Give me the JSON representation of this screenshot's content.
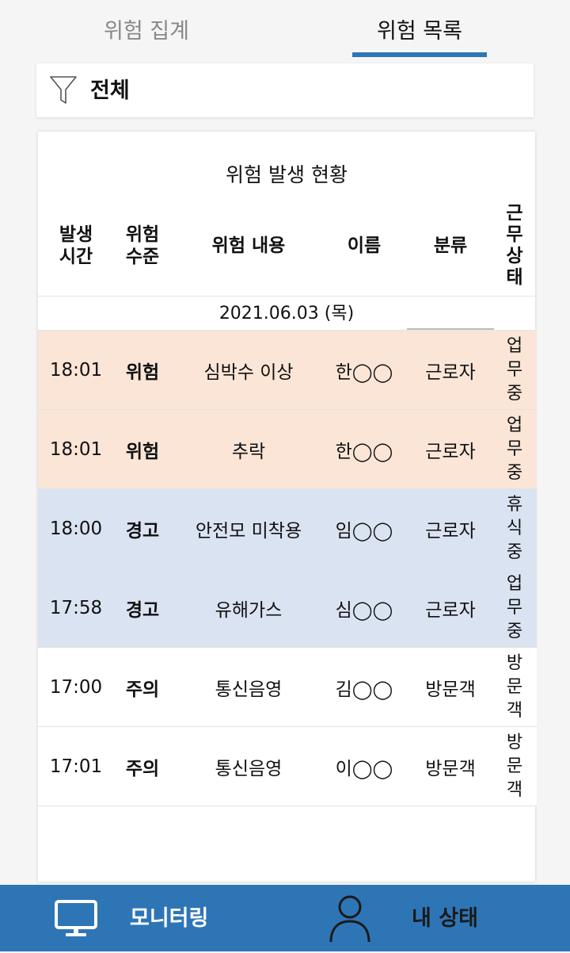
{
  "tabs": [
    {
      "label": "위험 집계",
      "active": false
    },
    {
      "label": "위험 목록",
      "active": true
    }
  ],
  "filter": {
    "icon": "filter-icon",
    "label": "전체"
  },
  "card_title": "위험 발생 현황",
  "columns": {
    "time": [
      "발생",
      "시간"
    ],
    "level": [
      "위험",
      "수준"
    ],
    "content": "위험 내용",
    "name": "이름",
    "type": "분류",
    "status": [
      "근",
      "무",
      "상",
      "태"
    ]
  },
  "date": "2021.06.03 (목)",
  "rows": [
    {
      "time": "18:01",
      "level": "위험",
      "content": "심박수 이상",
      "name": "한◯◯",
      "type": "근로자",
      "status": [
        "업",
        "무",
        "중"
      ]
    },
    {
      "time": "18:01",
      "level": "위험",
      "content": "추락",
      "name": "한◯◯",
      "type": "근로자",
      "status": [
        "업",
        "무",
        "중"
      ]
    },
    {
      "time": "18:00",
      "level": "경고",
      "content": "안전모 미착용",
      "name": "임◯◯",
      "type": "근로자",
      "status": [
        "휴",
        "식",
        "중"
      ]
    },
    {
      "time": "17:58",
      "level": "경고",
      "content": "유해가스",
      "name": "심◯◯",
      "type": "근로자",
      "status": [
        "업",
        "무",
        "중"
      ]
    },
    {
      "time": "17:00",
      "level": "주의",
      "content": "통신음영",
      "name": "김◯◯",
      "type": "방문객",
      "status": [
        "방",
        "문",
        "객"
      ]
    },
    {
      "time": "17:01",
      "level": "주의",
      "content": "통신음영",
      "name": "이◯◯",
      "type": "방문객",
      "status": [
        "방",
        "문",
        "객"
      ]
    }
  ],
  "colors": {
    "danger": "#fae5d7",
    "warning": "#dae3f2",
    "caution": "#ffffff",
    "accent": "#2e75b6"
  },
  "bottom_nav": [
    {
      "icon": "monitor-icon",
      "label": "모니터링"
    },
    {
      "icon": "person-icon",
      "label": "내 상태"
    }
  ]
}
